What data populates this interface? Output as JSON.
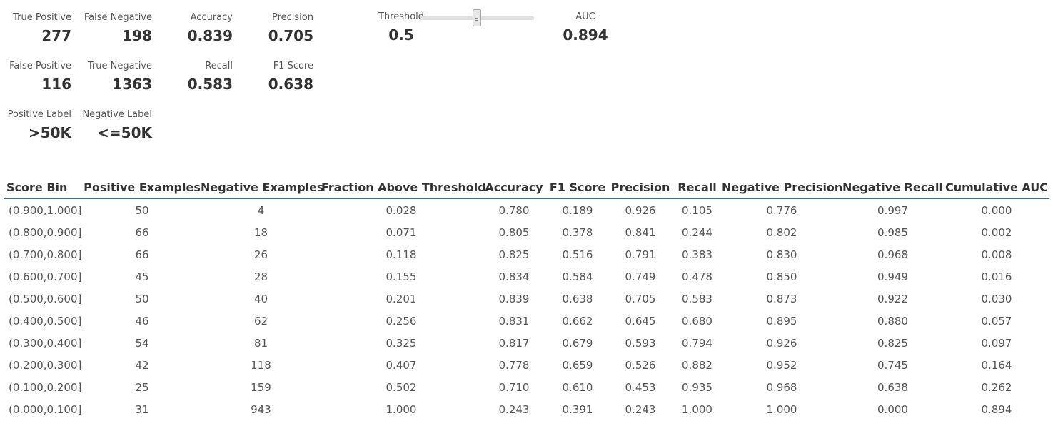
{
  "metrics": {
    "true_positive": {
      "label": "True Positive",
      "value": "277"
    },
    "false_negative": {
      "label": "False Negative",
      "value": "198"
    },
    "false_positive": {
      "label": "False Positive",
      "value": "116"
    },
    "true_negative": {
      "label": "True Negative",
      "value": "1363"
    },
    "positive_label": {
      "label": "Positive Label",
      "value": ">50K"
    },
    "negative_label": {
      "label": "Negative Label",
      "value": "<=50K"
    },
    "accuracy": {
      "label": "Accuracy",
      "value": "0.839"
    },
    "recall": {
      "label": "Recall",
      "value": "0.583"
    },
    "precision": {
      "label": "Precision",
      "value": "0.705"
    },
    "f1_score": {
      "label": "F1 Score",
      "value": "0.638"
    },
    "auc": {
      "label": "AUC",
      "value": "0.894"
    }
  },
  "threshold": {
    "label": "Threshold",
    "value": "0.5",
    "slider_fraction": 0.5
  },
  "table": {
    "headers": [
      "Score Bin",
      "Positive Examples",
      "Negative Examples",
      "Fraction Above Threshold",
      "Accuracy",
      "F1 Score",
      "Precision",
      "Recall",
      "Negative Precision",
      "Negative Recall",
      "Cumulative AUC"
    ],
    "rows": [
      [
        "(0.900,1.000]",
        "50",
        "4",
        "0.028",
        "0.780",
        "0.189",
        "0.926",
        "0.105",
        "0.776",
        "0.997",
        "0.000"
      ],
      [
        "(0.800,0.900]",
        "66",
        "18",
        "0.071",
        "0.805",
        "0.378",
        "0.841",
        "0.244",
        "0.802",
        "0.985",
        "0.002"
      ],
      [
        "(0.700,0.800]",
        "66",
        "26",
        "0.118",
        "0.825",
        "0.516",
        "0.791",
        "0.383",
        "0.830",
        "0.968",
        "0.008"
      ],
      [
        "(0.600,0.700]",
        "45",
        "28",
        "0.155",
        "0.834",
        "0.584",
        "0.749",
        "0.478",
        "0.850",
        "0.949",
        "0.016"
      ],
      [
        "(0.500,0.600]",
        "50",
        "40",
        "0.201",
        "0.839",
        "0.638",
        "0.705",
        "0.583",
        "0.873",
        "0.922",
        "0.030"
      ],
      [
        "(0.400,0.500]",
        "46",
        "62",
        "0.256",
        "0.831",
        "0.662",
        "0.645",
        "0.680",
        "0.895",
        "0.880",
        "0.057"
      ],
      [
        "(0.300,0.400]",
        "54",
        "81",
        "0.325",
        "0.817",
        "0.679",
        "0.593",
        "0.794",
        "0.926",
        "0.825",
        "0.097"
      ],
      [
        "(0.200,0.300]",
        "42",
        "118",
        "0.407",
        "0.778",
        "0.659",
        "0.526",
        "0.882",
        "0.952",
        "0.745",
        "0.164"
      ],
      [
        "(0.100,0.200]",
        "25",
        "159",
        "0.502",
        "0.710",
        "0.610",
        "0.453",
        "0.935",
        "0.968",
        "0.638",
        "0.262"
      ],
      [
        "(0.000,0.100]",
        "31",
        "943",
        "1.000",
        "0.243",
        "0.391",
        "0.243",
        "1.000",
        "1.000",
        "0.000",
        "0.894"
      ]
    ]
  }
}
